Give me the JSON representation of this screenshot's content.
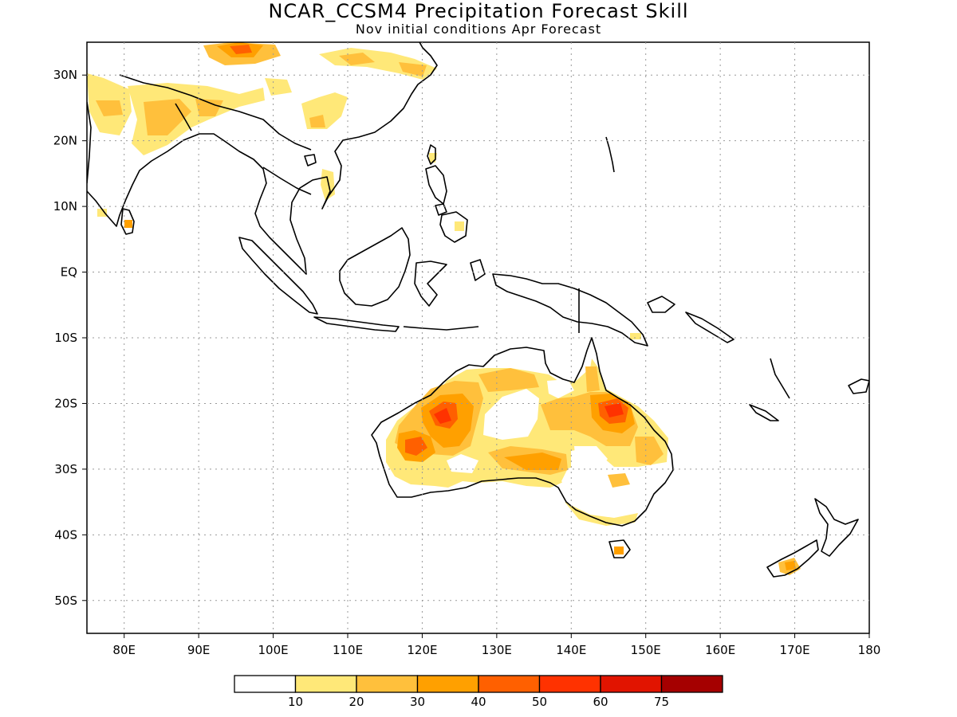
{
  "title": "NCAR_CCSM4 Precipitation Forecast Skill",
  "subtitle": "Nov initial conditions  Apr Forecast",
  "map": {
    "lon_range": [
      75,
      180
    ],
    "lat_range": [
      -55,
      35
    ],
    "lon_ticks": [
      {
        "v": 80,
        "label": "80E"
      },
      {
        "v": 90,
        "label": "90E"
      },
      {
        "v": 100,
        "label": "100E"
      },
      {
        "v": 110,
        "label": "110E"
      },
      {
        "v": 120,
        "label": "120E"
      },
      {
        "v": 130,
        "label": "130E"
      },
      {
        "v": 140,
        "label": "140E"
      },
      {
        "v": 150,
        "label": "150E"
      },
      {
        "v": 160,
        "label": "160E"
      },
      {
        "v": 170,
        "label": "170E"
      },
      {
        "v": 180,
        "label": "180"
      }
    ],
    "lat_ticks": [
      {
        "v": 30,
        "label": "30N"
      },
      {
        "v": 20,
        "label": "20N"
      },
      {
        "v": 10,
        "label": "10N"
      },
      {
        "v": 0,
        "label": "EQ"
      },
      {
        "v": -10,
        "label": "10S"
      },
      {
        "v": -20,
        "label": "20S"
      },
      {
        "v": -30,
        "label": "30S"
      },
      {
        "v": -40,
        "label": "40S"
      },
      {
        "v": -50,
        "label": "50S"
      }
    ],
    "grid": true
  },
  "colorbar": {
    "colors": [
      "#ffffff",
      "#ffe878",
      "#ffc03c",
      "#ffa000",
      "#ff6000",
      "#ff3200",
      "#e11400",
      "#a50000"
    ],
    "labels": [
      "10",
      "20",
      "30",
      "40",
      "50",
      "60",
      "75"
    ]
  }
}
